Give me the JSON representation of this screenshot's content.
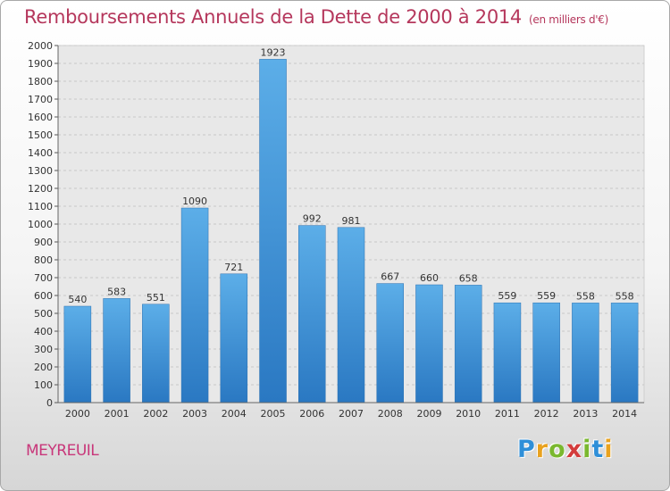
{
  "chart_data": {
    "type": "bar",
    "title": "Remboursements Annuels de la Dette de 2000 à 2014",
    "subtitle": "(en milliers d'€)",
    "categories": [
      "2000",
      "2001",
      "2002",
      "2003",
      "2004",
      "2005",
      "2006",
      "2007",
      "2008",
      "2009",
      "2010",
      "2011",
      "2012",
      "2013",
      "2014"
    ],
    "values": [
      540,
      583,
      551,
      1090,
      721,
      1923,
      992,
      981,
      667,
      660,
      658,
      559,
      559,
      558,
      558
    ],
    "ylim": [
      0,
      2000
    ],
    "yticks": [
      "0",
      "100",
      "200",
      "300",
      "400",
      "500",
      "600",
      "700",
      "800",
      "900",
      "1000",
      "1100",
      "1200",
      "1300",
      "1400",
      "1500",
      "1600",
      "1700",
      "1800",
      "1900",
      "2000"
    ],
    "grid": true,
    "bar_color": "#3f91d6"
  },
  "footer": {
    "city": "MEYREUIL",
    "logo": {
      "letters": [
        "P",
        "r",
        "o",
        "x",
        "i",
        "t",
        "i"
      ],
      "colors": [
        "#2f8fd8",
        "#e9a21f",
        "#7ab82f",
        "#d33b3b",
        "#7ab82f",
        "#2f8fd8",
        "#e9a21f"
      ]
    }
  }
}
